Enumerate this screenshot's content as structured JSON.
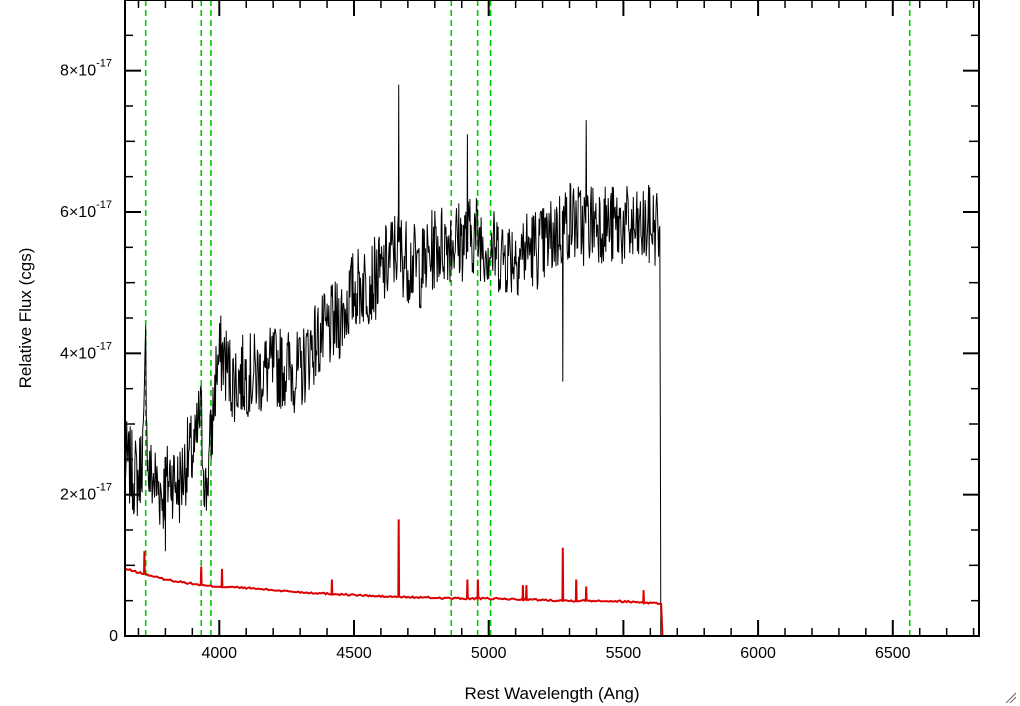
{
  "chart_data": {
    "type": "line",
    "title": "",
    "xlabel": "Rest Wavelength (Ang)",
    "ylabel": "Relative Flux (cgs)",
    "xlim": [
      3650,
      6820
    ],
    "ylim": [
      0,
      9e-17
    ],
    "xticks": [
      {
        "value": 4000,
        "label": "4000"
      },
      {
        "value": 4500,
        "label": "4500"
      },
      {
        "value": 5000,
        "label": "5000"
      },
      {
        "value": 5500,
        "label": "5500"
      },
      {
        "value": 6000,
        "label": "6000"
      },
      {
        "value": 6500,
        "label": "6500"
      }
    ],
    "yticks": [
      {
        "value": 0,
        "label": "0",
        "mantissa": "",
        "exponent": ""
      },
      {
        "value": 2e-17,
        "label": "",
        "mantissa": "2×10",
        "exponent": "-17"
      },
      {
        "value": 4e-17,
        "label": "",
        "mantissa": "4×10",
        "exponent": "-17"
      },
      {
        "value": 6e-17,
        "label": "",
        "mantissa": "6×10",
        "exponent": "-17"
      },
      {
        "value": 8e-17,
        "label": "",
        "mantissa": "8×10",
        "exponent": "-17"
      }
    ],
    "vertical_lines": [
      3727,
      3933,
      3969,
      4861,
      4959,
      5007,
      6563
    ],
    "series": [
      {
        "color": "#000000",
        "points": [
          [
            3650,
            2.5e-17
          ],
          [
            3680,
            2.3e-17
          ],
          [
            3700,
            2.2e-17
          ],
          [
            3720,
            2.8e-17
          ],
          [
            3727,
            4.1e-17
          ],
          [
            3735,
            2.3e-17
          ],
          [
            3760,
            2.2e-17
          ],
          [
            3790,
            2e-17
          ],
          [
            3820,
            2.3e-17
          ],
          [
            3850,
            2.1e-17
          ],
          [
            3880,
            2.5e-17
          ],
          [
            3910,
            2.6e-17
          ],
          [
            3930,
            3.2e-17
          ],
          [
            3950,
            2e-17
          ],
          [
            3970,
            2.8e-17
          ],
          [
            3990,
            3.8e-17
          ],
          [
            4010,
            4e-17
          ],
          [
            4050,
            3.6e-17
          ],
          [
            4100,
            3.7e-17
          ],
          [
            4150,
            3.7e-17
          ],
          [
            4200,
            3.8e-17
          ],
          [
            4250,
            3.8e-17
          ],
          [
            4300,
            3.7e-17
          ],
          [
            4340,
            4.1e-17
          ],
          [
            4400,
            4.3e-17
          ],
          [
            4450,
            4.5e-17
          ],
          [
            4500,
            4.9e-17
          ],
          [
            4550,
            5e-17
          ],
          [
            4600,
            5.1e-17
          ],
          [
            4640,
            5.4e-17
          ],
          [
            4660,
            5.5e-17
          ],
          [
            4680,
            5.4e-17
          ],
          [
            4700,
            5.3e-17
          ],
          [
            4750,
            5.2e-17
          ],
          [
            4800,
            5.5e-17
          ],
          [
            4850,
            5.6e-17
          ],
          [
            4900,
            5.6e-17
          ],
          [
            4950,
            5.7e-17
          ],
          [
            5000,
            5.5e-17
          ],
          [
            5050,
            5.4e-17
          ],
          [
            5100,
            5.4e-17
          ],
          [
            5150,
            5.5e-17
          ],
          [
            5200,
            5.5e-17
          ],
          [
            5250,
            5.7e-17
          ],
          [
            5300,
            5.9e-17
          ],
          [
            5350,
            5.8e-17
          ],
          [
            5400,
            5.9e-17
          ],
          [
            5450,
            5.8e-17
          ],
          [
            5500,
            5.8e-17
          ],
          [
            5550,
            5.7e-17
          ],
          [
            5600,
            5.8e-17
          ],
          [
            5635,
            5.8e-17
          ]
        ],
        "spikes": [
          [
            4666,
            7.8e-17
          ],
          [
            4921,
            7.1e-17
          ],
          [
            5362,
            7.3e-17
          ],
          [
            5275,
            3.6e-17
          ],
          [
            3800,
            1.2e-17
          ]
        ]
      },
      {
        "color": "#dd0000",
        "points": [
          [
            3650,
            9.5e-18
          ],
          [
            3700,
            9e-18
          ],
          [
            3750,
            8.5e-18
          ],
          [
            3800,
            8e-18
          ],
          [
            3850,
            7.7e-18
          ],
          [
            3900,
            7.4e-18
          ],
          [
            3950,
            7.1e-18
          ],
          [
            4000,
            7e-18
          ],
          [
            4100,
            6.8e-18
          ],
          [
            4200,
            6.5e-18
          ],
          [
            4300,
            6.2e-18
          ],
          [
            4400,
            6e-18
          ],
          [
            4500,
            5.8e-18
          ],
          [
            4600,
            5.6e-18
          ],
          [
            4700,
            5.5e-18
          ],
          [
            4800,
            5.4e-18
          ],
          [
            4900,
            5.3e-18
          ],
          [
            5000,
            5.3e-18
          ],
          [
            5100,
            5.2e-18
          ],
          [
            5200,
            5.1e-18
          ],
          [
            5300,
            5e-18
          ],
          [
            5400,
            5e-18
          ],
          [
            5500,
            4.9e-18
          ],
          [
            5600,
            4.7e-18
          ],
          [
            5640,
            4.6e-18
          ],
          [
            5645,
            0
          ],
          [
            6820,
            0
          ]
        ],
        "spikes": [
          [
            3722,
            1.2e-17
          ],
          [
            3933,
            9.8e-18
          ],
          [
            4010,
            9.5e-18
          ],
          [
            4418,
            8e-18
          ],
          [
            4666,
            1.65e-17
          ],
          [
            4921,
            8e-18
          ],
          [
            4960,
            8e-18
          ],
          [
            5127,
            7.2e-18
          ],
          [
            5140,
            7.2e-18
          ],
          [
            5275,
            1.25e-17
          ],
          [
            5325,
            8e-18
          ],
          [
            5362,
            7e-18
          ],
          [
            5575,
            6.5e-18
          ]
        ]
      }
    ],
    "guide_color": "#00cc00",
    "grid": false,
    "legend": "none"
  }
}
